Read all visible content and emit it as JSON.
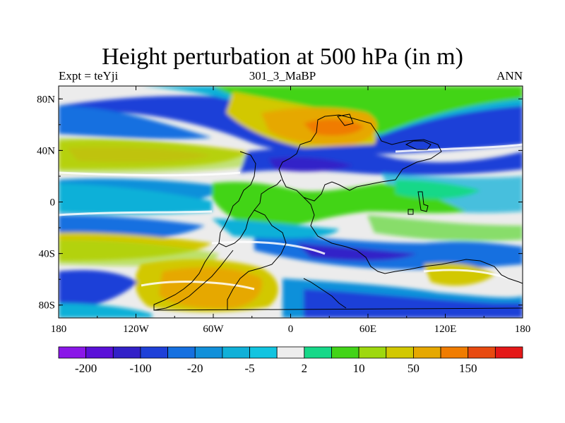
{
  "chart_data": {
    "type": "heatmap",
    "title": "Height perturbation at 500 hPa (in m)",
    "subtitle_left": "Expt = teYji",
    "subtitle_center": "301_3_MaBP",
    "subtitle_right": "ANN",
    "x_ticks": [
      "180",
      "120W",
      "60W",
      "0",
      "60E",
      "120E",
      "180"
    ],
    "y_ticks": [
      "80N",
      "40N",
      "0",
      "40S",
      "80S"
    ],
    "xlim": [
      -180,
      180
    ],
    "ylim": [
      -90,
      90
    ],
    "colorbar": {
      "levels": [
        -200,
        -150,
        -100,
        -50,
        -20,
        -10,
        -5,
        -2,
        2,
        5,
        10,
        20,
        50,
        100,
        150,
        200
      ],
      "labels": [
        "-200",
        "-100",
        "-20",
        "-5",
        "2",
        "10",
        "50",
        "150"
      ],
      "colors": [
        "#8a17e8",
        "#5a10d8",
        "#3220c8",
        "#1e40d8",
        "#1570e0",
        "#1190da",
        "#10b0d8",
        "#12c4e0",
        "#ededed",
        "#16d888",
        "#42d418",
        "#9ed80e",
        "#d2c800",
        "#e6a800",
        "#f07c00",
        "#e84a10",
        "#e41818"
      ]
    }
  }
}
